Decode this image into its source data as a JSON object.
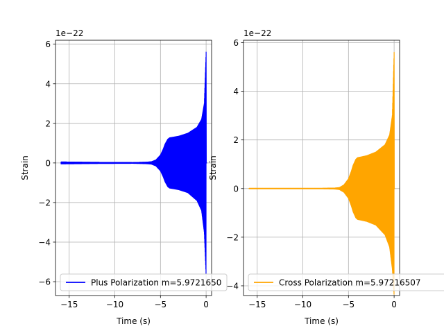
{
  "chart_data": [
    {
      "type": "line",
      "xlabel": "Time (s)",
      "ylabel": "Strain",
      "y_offset_text": "1e−22",
      "xlim": [
        -16.5,
        0.6
      ],
      "ylim": [
        -6.7,
        6.2
      ],
      "xticks": [
        -15,
        -10,
        -5,
        0
      ],
      "xtick_labels": [
        "−15",
        "−10",
        "−5",
        "0"
      ],
      "yticks": [
        -6,
        -4,
        -2,
        0,
        2,
        4,
        6
      ],
      "ytick_labels": [
        "−6",
        "−4",
        "−2",
        "0",
        "2",
        "4",
        "6"
      ],
      "grid": true,
      "legend_position": "bottom-center",
      "series": [
        {
          "name": "Plus Polarization m=5.9721650",
          "color": "#0000ff",
          "x_range": [
            -15.9,
            0.1
          ],
          "envelope": {
            "x": [
              -15.9,
              -12,
              -8,
              -6.5,
              -6,
              -5.5,
              -5,
              -4.7,
              -4.5,
              -4.2,
              -4.0,
              -3.6,
              -3,
              -2,
              -1,
              -0.5,
              -0.2,
              0.0
            ],
            "amp": [
              0.05,
              0.03,
              0.02,
              0.04,
              0.06,
              0.15,
              0.4,
              0.7,
              0.95,
              1.2,
              1.27,
              1.3,
              1.35,
              1.5,
              1.8,
              2.2,
              3.0,
              5.6
            ],
            "min": [
              -0.05,
              -0.03,
              -0.02,
              -0.04,
              -0.06,
              -0.15,
              -0.4,
              -0.7,
              -0.95,
              -1.2,
              -1.27,
              -1.3,
              -1.35,
              -1.5,
              -1.9,
              -2.4,
              -3.5,
              -5.7
            ]
          }
        }
      ]
    },
    {
      "type": "line",
      "xlabel": "Time (s)",
      "ylabel": "Strain",
      "y_offset_text": "1e−22",
      "xlim": [
        -16.5,
        0.6
      ],
      "ylim": [
        -4.4,
        6.1
      ],
      "xticks": [
        -15,
        -10,
        -5,
        0
      ],
      "xtick_labels": [
        "−15",
        "−10",
        "−5",
        "0"
      ],
      "yticks": [
        -4,
        -2,
        0,
        2,
        4,
        6
      ],
      "ytick_labels": [
        "−4",
        "−2",
        "0",
        "2",
        "4",
        "6"
      ],
      "grid": true,
      "legend_position": "bottom-center",
      "series": [
        {
          "name": "Cross Polarization m=5.97216507",
          "color": "#ffa500",
          "x_range": [
            -15.9,
            0.1
          ],
          "envelope": {
            "x": [
              -15.9,
              -12,
              -8,
              -6.5,
              -6,
              -5.5,
              -5,
              -4.7,
              -4.5,
              -4.2,
              -4.0,
              -3.6,
              -3,
              -2,
              -1,
              -0.5,
              -0.2,
              0.0
            ],
            "amp": [
              0.01,
              0.01,
              0.01,
              0.02,
              0.04,
              0.15,
              0.4,
              0.7,
              0.95,
              1.2,
              1.27,
              1.3,
              1.35,
              1.5,
              1.8,
              2.2,
              3.0,
              5.6
            ],
            "min": [
              -0.01,
              -0.01,
              -0.01,
              -0.02,
              -0.04,
              -0.15,
              -0.4,
              -0.7,
              -0.95,
              -1.2,
              -1.27,
              -1.3,
              -1.35,
              -1.5,
              -1.9,
              -2.4,
              -3.3,
              -4.4
            ]
          }
        }
      ]
    }
  ]
}
